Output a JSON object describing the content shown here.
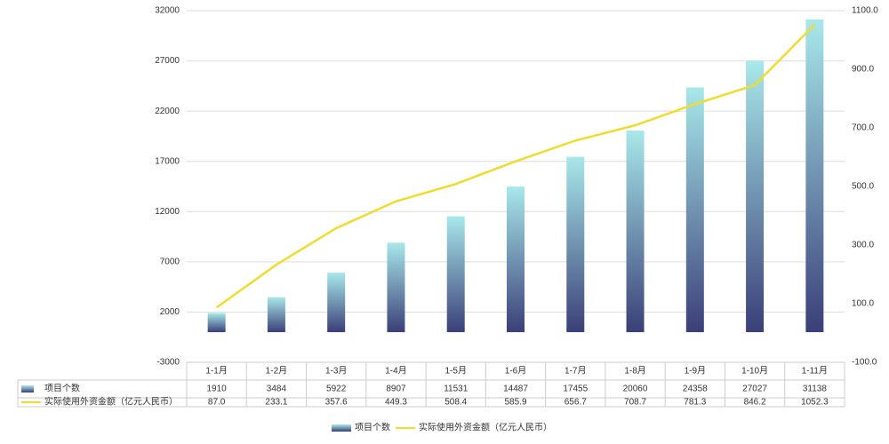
{
  "chart_data": {
    "type": "bar-line",
    "categories": [
      "1-1月",
      "1-2月",
      "1-3月",
      "1-4月",
      "1-5月",
      "1-6月",
      "1-7月",
      "1-8月",
      "1-9月",
      "1-10月",
      "1-11月"
    ],
    "series": [
      {
        "name": "项目个数",
        "type": "bar",
        "color": [
          "#a8e8ea",
          "#3a3f78"
        ],
        "values": [
          1910,
          3484,
          5922,
          8907,
          11531,
          14487,
          17455,
          20060,
          24358,
          27027,
          31138
        ]
      },
      {
        "name": "实际使用外资金额（亿元人民币）",
        "type": "line",
        "axis": "y2",
        "color": "#f0dc2c",
        "values": [
          87.0,
          233.1,
          357.6,
          449.3,
          508.4,
          585.9,
          656.7,
          708.7,
          781.3,
          846.2,
          1052.3
        ],
        "value_labels": [
          "87.0",
          "233.1",
          "357.6",
          "449.3",
          "508.4",
          "585.9",
          "656.7",
          "708.7",
          "781.3",
          "846.2",
          "1052.3"
        ]
      }
    ],
    "ylim": [
      -3000,
      32000
    ],
    "yticks": [
      -3000,
      2000,
      7000,
      12000,
      17000,
      22000,
      27000,
      32000
    ],
    "y2lim": [
      -100,
      1100
    ],
    "y2ticks": [
      {
        "value": -100,
        "label": "-100.0"
      },
      {
        "value": 100,
        "label": "100.0"
      },
      {
        "value": 300,
        "label": "300.0"
      },
      {
        "value": 500,
        "label": "500.0"
      },
      {
        "value": 700,
        "label": "700.0"
      },
      {
        "value": 900,
        "label": "900.0"
      },
      {
        "value": 1100,
        "label": "1100.0"
      }
    ],
    "grid": true,
    "legend": "bottom"
  }
}
